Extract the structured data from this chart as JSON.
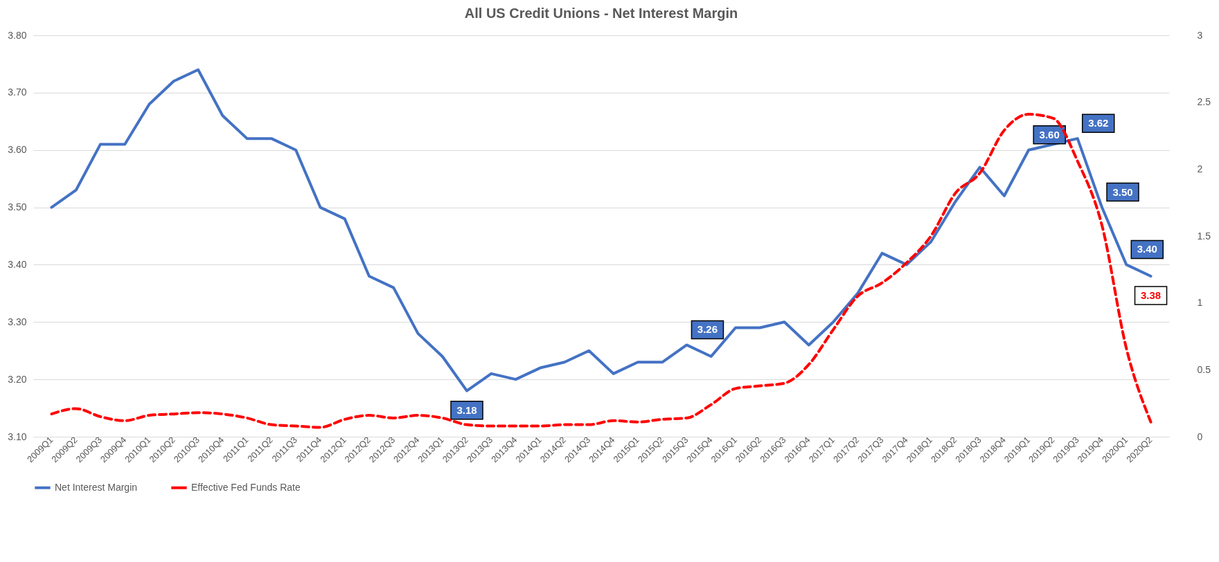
{
  "chart_data": {
    "type": "line",
    "title": "All US Credit Unions - Net Interest Margin",
    "categories": [
      "2009Q1",
      "2009Q2",
      "2009Q3",
      "2009Q4",
      "2010Q1",
      "2010Q2",
      "2010Q3",
      "2010Q4",
      "2011Q1",
      "2011Q2",
      "2011Q3",
      "2011Q4",
      "2012Q1",
      "2012Q2",
      "2012Q3",
      "2012Q4",
      "2013Q1",
      "2013Q2",
      "2013Q3",
      "2013Q4",
      "2014Q1",
      "2014Q2",
      "2014Q3",
      "2014Q4",
      "2015Q1",
      "2015Q2",
      "2015Q3",
      "2015Q4",
      "2016Q1",
      "2016Q2",
      "2016Q3",
      "2016Q4",
      "2017Q1",
      "2017Q2",
      "2017Q3",
      "2017Q4",
      "2018Q1",
      "2018Q2",
      "2018Q3",
      "2018Q4",
      "2019Q1",
      "2019Q2",
      "2019Q3",
      "2019Q4",
      "2020Q1",
      "2020Q2"
    ],
    "series": [
      {
        "name": "Net Interest Margin",
        "color": "#4472c4",
        "line_style": "solid",
        "values": [
          3.5,
          3.53,
          3.61,
          3.61,
          3.68,
          3.72,
          3.74,
          3.66,
          3.62,
          3.62,
          3.6,
          3.5,
          3.48,
          3.38,
          3.36,
          3.28,
          3.24,
          3.18,
          3.21,
          3.2,
          3.22,
          3.23,
          3.25,
          3.21,
          3.23,
          3.23,
          3.26,
          3.24,
          3.29,
          3.29,
          3.3,
          3.26,
          3.3,
          3.35,
          3.42,
          3.4,
          3.44,
          3.51,
          3.57,
          3.52,
          3.6,
          3.61,
          3.62,
          3.5,
          3.4,
          3.38
        ],
        "value_labels": [
          null,
          null,
          null,
          null,
          null,
          null,
          null,
          null,
          null,
          null,
          null,
          null,
          null,
          null,
          null,
          null,
          null,
          "3.18",
          null,
          null,
          null,
          null,
          null,
          null,
          null,
          null,
          "3.26",
          null,
          null,
          null,
          null,
          null,
          null,
          null,
          null,
          null,
          null,
          null,
          null,
          null,
          "3.60",
          null,
          "3.62",
          "3.50",
          "3.40",
          "3.38"
        ]
      },
      {
        "name": "Effective Fed Funds Rate",
        "color": "#ff0000",
        "line_style": "dashed",
        "axis": "y2",
        "values": [
          0.17,
          0.21,
          0.15,
          0.12,
          0.16,
          0.17,
          0.18,
          0.17,
          0.14,
          0.09,
          0.08,
          0.07,
          0.13,
          0.16,
          0.14,
          0.16,
          0.14,
          0.09,
          0.08,
          0.08,
          0.08,
          0.09,
          0.09,
          0.12,
          0.11,
          0.13,
          0.14,
          0.24,
          0.36,
          0.38,
          0.4,
          0.54,
          0.8,
          1.05,
          1.15,
          1.3,
          1.5,
          1.82,
          1.97,
          2.29,
          2.41,
          2.38,
          2.06,
          1.58,
          0.66,
          0.11
        ]
      }
    ],
    "ylim": [
      3.1,
      3.8
    ],
    "yticks": [
      {
        "value": 3.1,
        "label": "3.10"
      },
      {
        "value": 3.2,
        "label": "3.20"
      },
      {
        "value": 3.3,
        "label": "3.30"
      },
      {
        "value": 3.4,
        "label": "3.40"
      },
      {
        "value": 3.5,
        "label": "3.50"
      },
      {
        "value": 3.6,
        "label": "3.60"
      },
      {
        "value": 3.7,
        "label": "3.70"
      },
      {
        "value": 3.8,
        "label": "3.80"
      }
    ],
    "y2lim": [
      0,
      3
    ],
    "y2ticks": [
      0,
      0.5,
      1,
      1.5,
      2,
      2.5,
      3
    ],
    "grid": "y",
    "legend": "bottom"
  }
}
